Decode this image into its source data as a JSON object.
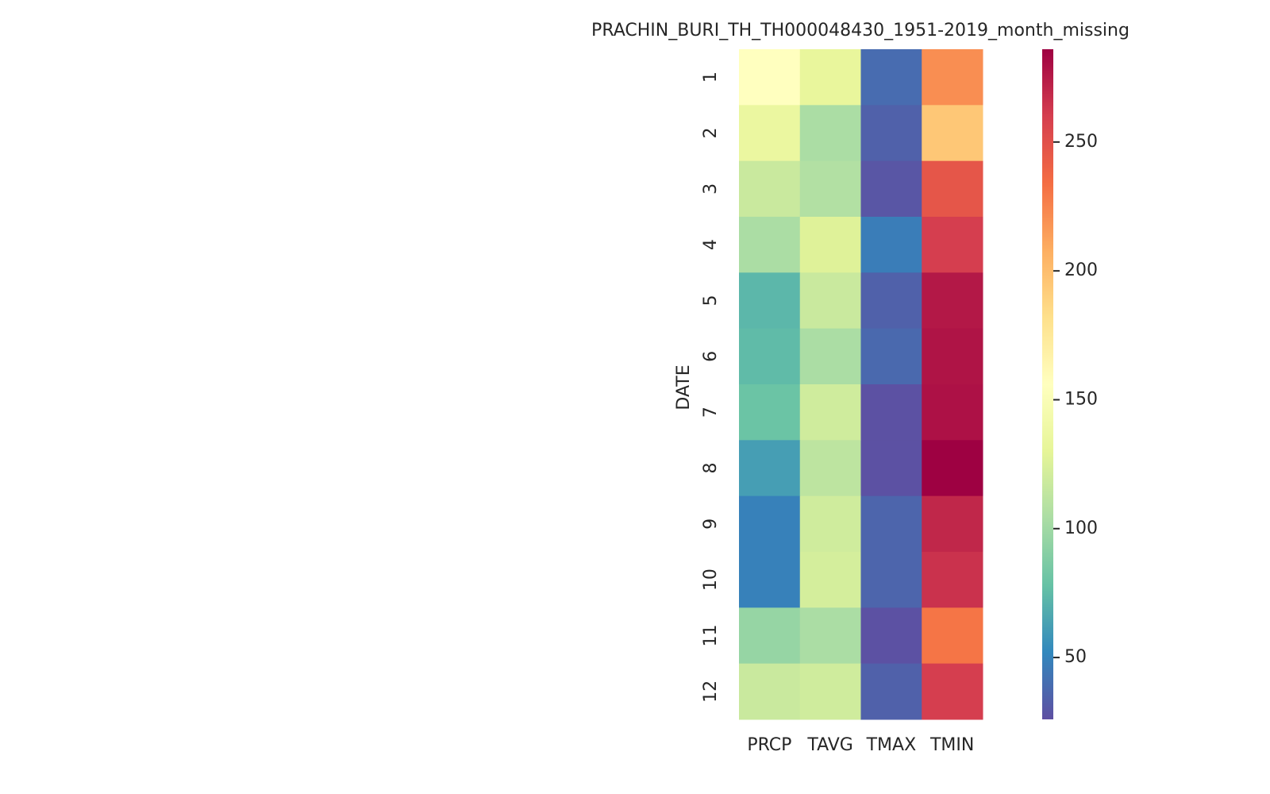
{
  "chart_data": {
    "type": "heatmap",
    "title": "PRACHIN_BURI_TH_TH000048430_1951-2019_month_missing",
    "ylabel": "DATE",
    "x_categories": [
      "PRCP",
      "TAVG",
      "TMAX",
      "TMIN"
    ],
    "y_categories": [
      "1",
      "2",
      "3",
      "4",
      "5",
      "6",
      "7",
      "8",
      "9",
      "10",
      "11",
      "12"
    ],
    "values": [
      [
        156,
        133,
        39,
        221
      ],
      [
        135,
        104,
        34,
        195
      ],
      [
        117,
        107,
        29,
        247
      ],
      [
        104,
        127,
        47,
        260
      ],
      [
        73,
        117,
        34,
        276
      ],
      [
        75,
        104,
        38,
        278
      ],
      [
        80,
        120,
        27,
        279
      ],
      [
        62,
        112,
        27,
        286
      ],
      [
        49,
        120,
        36,
        270
      ],
      [
        49,
        122,
        36,
        265
      ],
      [
        96,
        104,
        27,
        231
      ],
      [
        117,
        120,
        34,
        260
      ]
    ],
    "colorscale": [
      "#5e4fa2",
      "#3288bd",
      "#66c2a5",
      "#abdda4",
      "#e6f598",
      "#ffffbf",
      "#fee08b",
      "#fdae61",
      "#f46d43",
      "#d53e4f",
      "#9e0142"
    ],
    "zlim": [
      26,
      286
    ],
    "zticks": [
      50,
      100,
      150,
      200,
      250
    ]
  }
}
